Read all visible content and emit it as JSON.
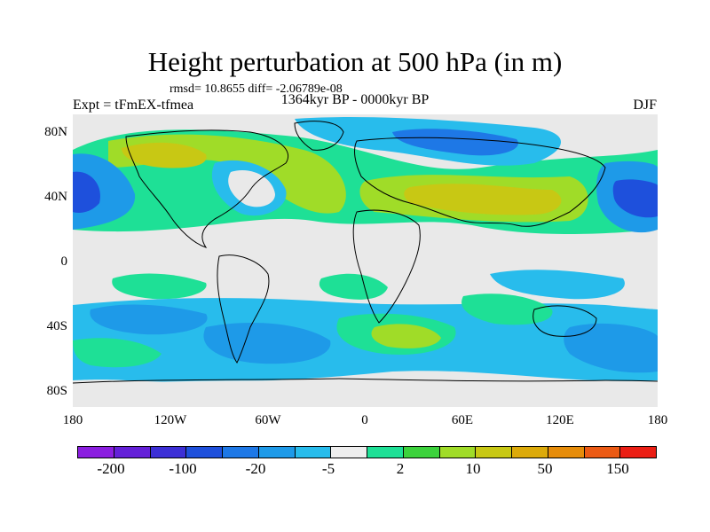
{
  "figure": {
    "title": "Height perturbation at 500 hPa (in m)",
    "stats": "rmsd= 10.8655 diff= -2.06789e-08",
    "left_label": "Expt = tFmEX-tfmea",
    "center_label": "1364kyr BP - 0000kyr BP",
    "right_label": "DJF"
  },
  "map": {
    "projection": "cylindrical-equidistant",
    "lat_ticks": [
      "80N",
      "40N",
      "0",
      "40S",
      "80S"
    ],
    "lon_ticks": [
      "180",
      "120W",
      "60W",
      "0",
      "60E",
      "120E",
      "180"
    ]
  },
  "legend": {
    "colors": [
      "#8b1ee0",
      "#6420d8",
      "#3c2fd6",
      "#1e50dc",
      "#1e78e6",
      "#1e9ae8",
      "#28bcec",
      "#eeeeee",
      "#1ee096",
      "#3cd23c",
      "#a0dc28",
      "#c8c814",
      "#dcaa0a",
      "#e68c0a",
      "#eb5a14",
      "#eb1e14"
    ],
    "labels": [
      "-200",
      "-100",
      "-20",
      "-5",
      "2",
      "10",
      "50",
      "150"
    ]
  }
}
